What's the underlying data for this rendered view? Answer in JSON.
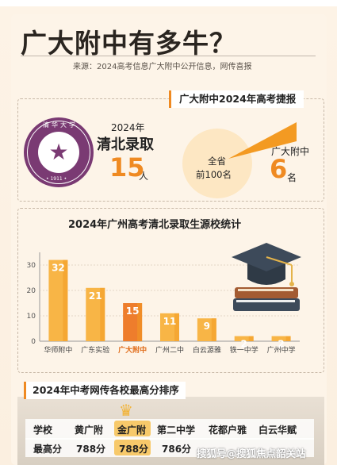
{
  "header": {
    "title": "广大附中有多牛？",
    "source": "来源：2024高考信息广大附中公开信息，网传喜报"
  },
  "gaokao": {
    "tag": "广大附中2024年高考捷报",
    "seal_top": "清华大学",
    "seal_year": "• 1911 •",
    "year": "2024年",
    "qingbei_label": "清北录取",
    "qingbei_count": "15",
    "qingbei_unit": "人",
    "province_label_1": "全省",
    "province_label_2": "前100名",
    "school_label": "广大附中",
    "top100_count": "6",
    "top100_unit": "名"
  },
  "chart_data": {
    "type": "bar",
    "title": "2024年广州高考清北录取生源校统计",
    "categories": [
      "华师附中",
      "广东实验",
      "广大附中",
      "广州二中",
      "白云源雅",
      "铁一中学",
      "广州中学"
    ],
    "values": [
      32,
      21,
      15,
      11,
      9,
      2,
      2
    ],
    "ylim": [
      0,
      35
    ],
    "yticks": [
      0,
      10,
      20,
      30
    ],
    "highlight": "广大附中",
    "colors": {
      "bar": "#f8b546",
      "bar_dark": "#f29b24",
      "highlight": "#ee7d2c",
      "label_highlight": "#e06c1a"
    },
    "grid": true
  },
  "zhongkao": {
    "tag": "2024年中考网传各校最高分排序",
    "header": [
      "学校",
      "黄广附",
      "金广附",
      "第二中学",
      "花都户雅",
      "白云华赋"
    ],
    "row": [
      "最高分",
      "788分",
      "788分",
      "786分",
      "",
      ""
    ]
  },
  "watermark": "搜狐号@搜狐焦点韶关站"
}
